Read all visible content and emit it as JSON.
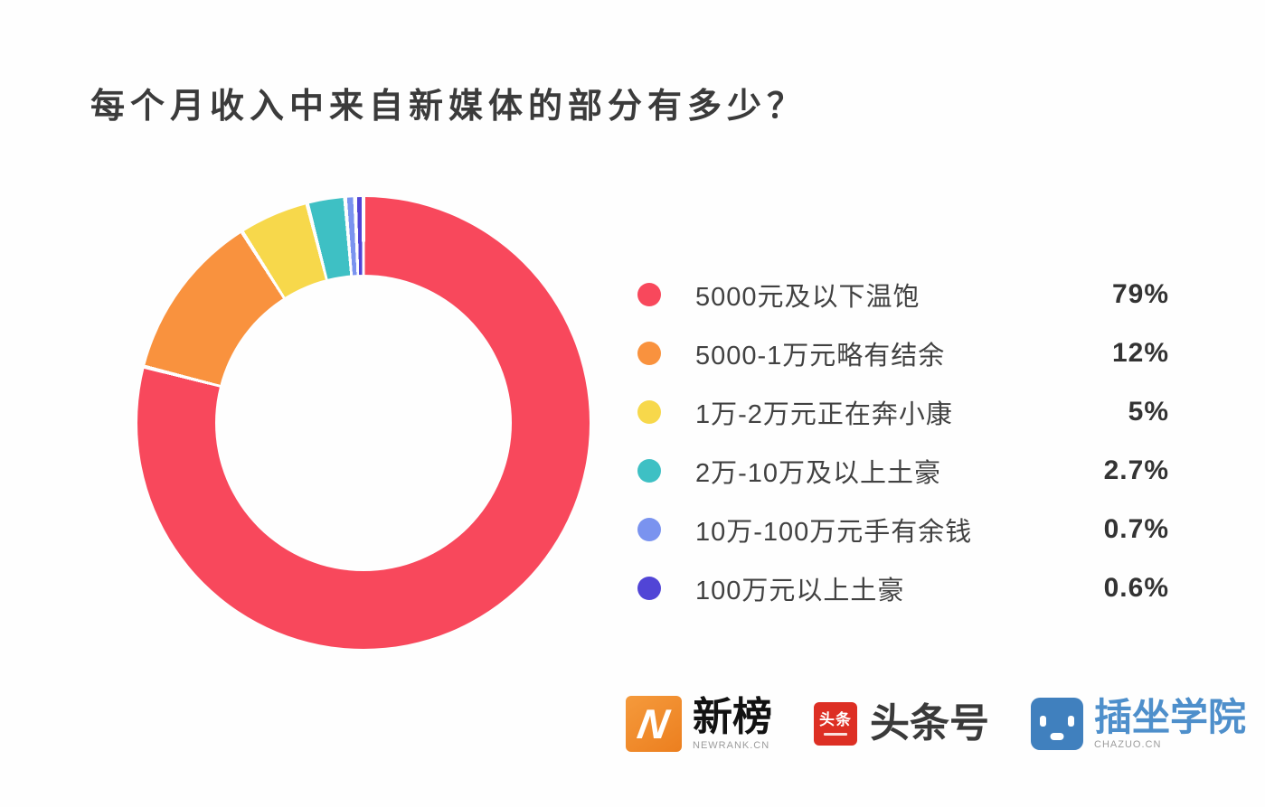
{
  "title": "每个月收入中来自新媒体的部分有多少？",
  "chart_data": {
    "type": "pie",
    "variant": "donut",
    "title": "每个月收入中来自新媒体的部分有多少？",
    "start_angle_deg": 0,
    "direction": "clockwise",
    "slice_gap_deg": 1,
    "legend_position": "right",
    "categories": [
      "5000元及以下温饱",
      "5000-1万元略有结余",
      "1万-2万元正在奔小康",
      "2万-10万及以上土豪",
      "10万-100万元手有余钱",
      "100万元以上土豪"
    ],
    "values": [
      79,
      12,
      5,
      2.7,
      0.7,
      0.6
    ],
    "slices": [
      {
        "label": "5000元及以下温饱",
        "value": 79,
        "display_value": "79%",
        "color": "#f8485c"
      },
      {
        "label": "5000-1万元略有结余",
        "value": 12,
        "display_value": "12%",
        "color": "#f9923e"
      },
      {
        "label": "1万-2万元正在奔小康",
        "value": 5,
        "display_value": "5%",
        "color": "#f7d84b"
      },
      {
        "label": "2万-10万及以上土豪",
        "value": 2.7,
        "display_value": "2.7%",
        "color": "#3ec0c4"
      },
      {
        "label": "10万-100万元手有余钱",
        "value": 0.7,
        "display_value": "0.7%",
        "color": "#7a93ef"
      },
      {
        "label": "100万元以上土豪",
        "value": 0.6,
        "display_value": "0.6%",
        "color": "#5145d6"
      }
    ]
  },
  "footer": {
    "logos": [
      {
        "name": "newrank",
        "text": "新榜",
        "subtext": "NEWRANK.CN",
        "mark_letter": "N",
        "mark_color": "#ee8529"
      },
      {
        "name": "toutiao",
        "text": "头条号",
        "mark_text": "头条",
        "mark_color": "#dd2f24"
      },
      {
        "name": "chazuo",
        "text": "插坐学院",
        "subtext": "CHAZUO.CN",
        "mark_color": "#4080be"
      }
    ]
  }
}
